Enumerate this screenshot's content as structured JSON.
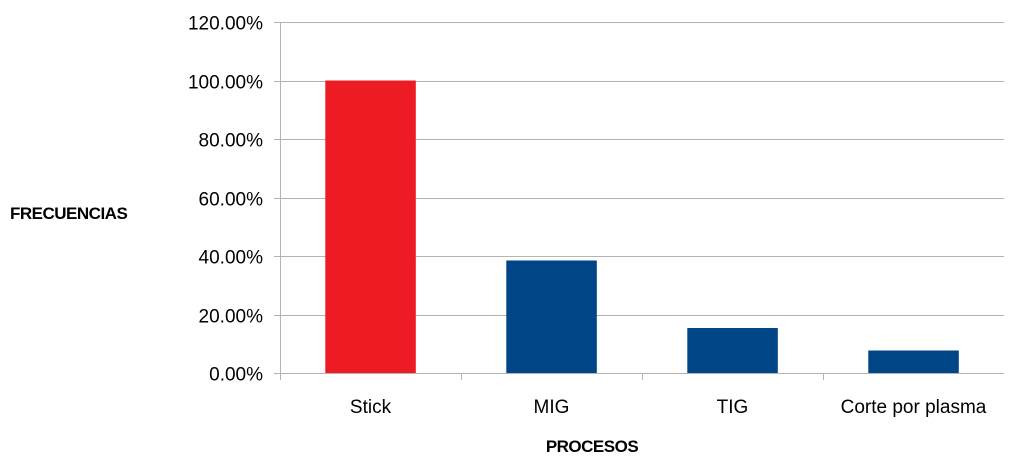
{
  "chart_data": {
    "type": "bar",
    "categories": [
      "Stick",
      "MIG",
      "TIG",
      "Corte por plasma"
    ],
    "values": [
      100.0,
      38.46,
      15.38,
      7.69
    ],
    "bar_colors": [
      "#ED1C24",
      "#004586",
      "#004586",
      "#004586"
    ],
    "xlabel": "PROCESOS",
    "ylabel": "FRECUENCIAS",
    "ylim": [
      0,
      120
    ],
    "yticks": [
      0,
      20,
      40,
      60,
      80,
      100,
      120
    ],
    "ytick_labels": [
      "0.00%",
      "20.00%",
      "40.00%",
      "60.00%",
      "80.00%",
      "100.00%",
      "120.00%"
    ],
    "grid": true,
    "grid_color": "#B3B3B3",
    "legend": false
  }
}
